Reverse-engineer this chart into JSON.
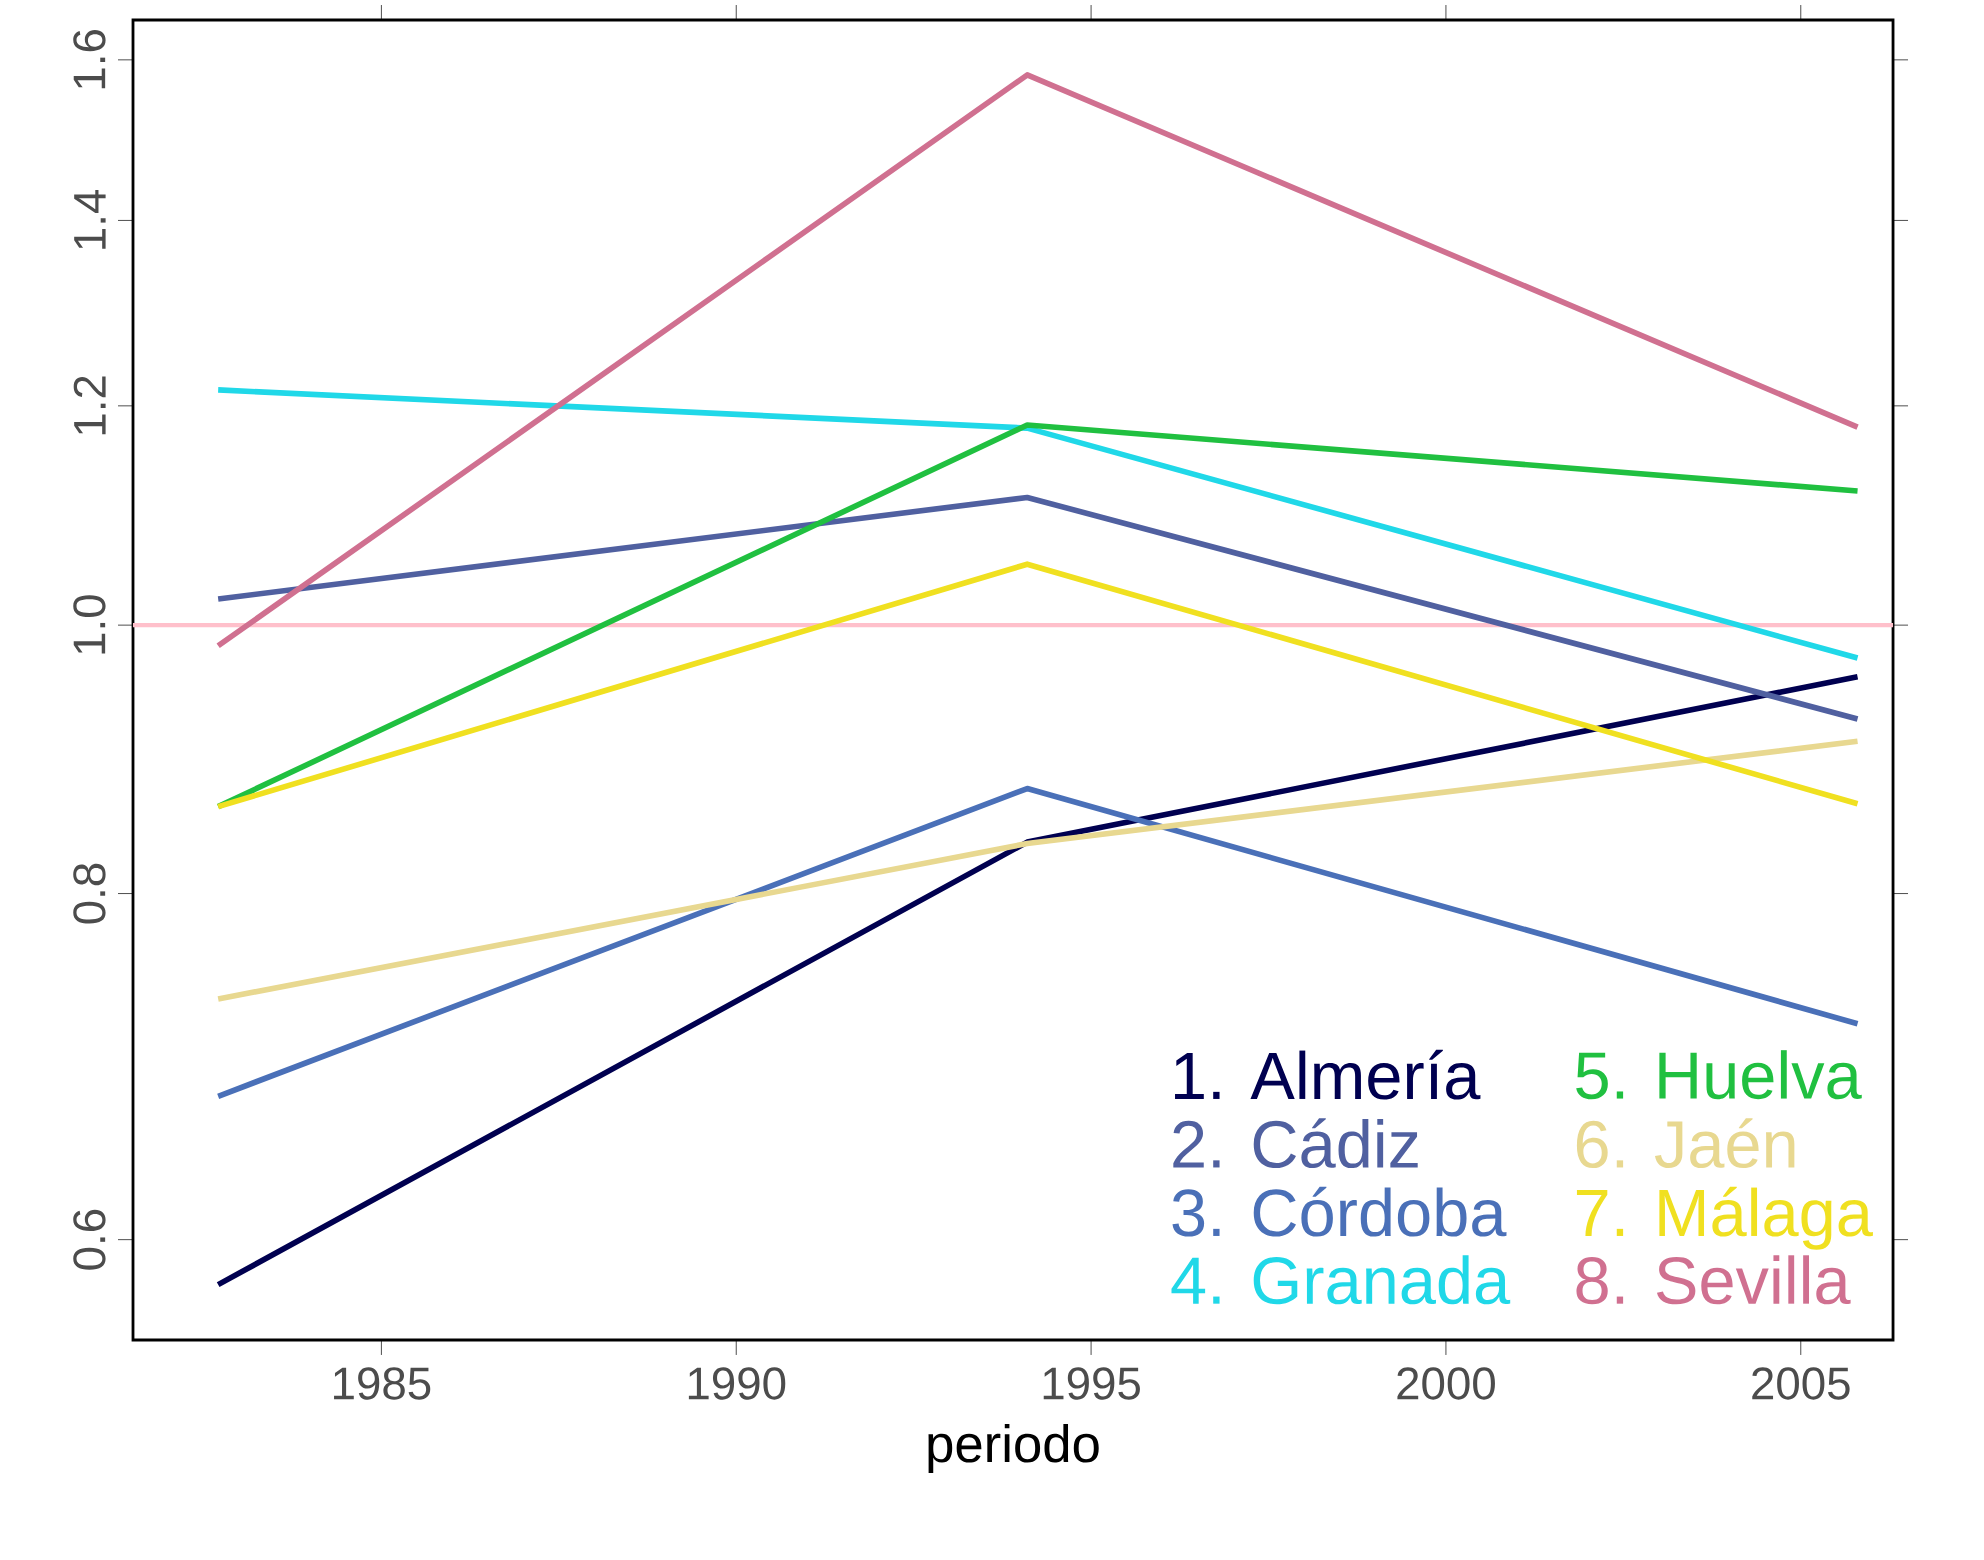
{
  "chart_data": {
    "type": "line",
    "xlabel": "periodo",
    "x": [
      1982.7,
      1994.1,
      2005.8
    ],
    "series": [
      {
        "name": "1. Almería",
        "color": "#000050",
        "values": [
          0.578,
          0.835,
          0.958
        ]
      },
      {
        "name": "2. Cádiz",
        "color": "#5060a0",
        "values": [
          1.022,
          1.112,
          0.925
        ]
      },
      {
        "name": "3. Córdoba",
        "color": "#4a70b8",
        "values": [
          0.676,
          0.873,
          0.718
        ]
      },
      {
        "name": "4. Granada",
        "color": "#20d8e8",
        "values": [
          1.216,
          1.178,
          0.973
        ]
      },
      {
        "name": "5. Huelva",
        "color": "#20c040",
        "values": [
          0.86,
          1.181,
          1.118
        ]
      },
      {
        "name": "6. Jaén",
        "color": "#e8d890",
        "values": [
          0.733,
          0.834,
          0.908
        ]
      },
      {
        "name": "7. Málaga",
        "color": "#f0e020",
        "values": [
          0.86,
          1.052,
          0.862
        ]
      },
      {
        "name": "8. Sevilla",
        "color": "#d07090",
        "values": [
          0.983,
          1.58,
          1.179
        ]
      }
    ],
    "log": "y",
    "xlim": [
      1981.5,
      2006.3
    ],
    "ylim": [
      0.552,
      1.654
    ],
    "xticks": [
      1985,
      1990,
      1995,
      2000,
      2005
    ],
    "yticks": [
      0.6,
      0.8,
      {
        "value": 1,
        "label": "1.0"
      },
      1.2,
      1.4,
      1.6
    ],
    "ref_lines": [
      {
        "axis": "y",
        "value": 1.0,
        "color": "#ffc0cb"
      }
    ],
    "legend": "bottom right"
  }
}
